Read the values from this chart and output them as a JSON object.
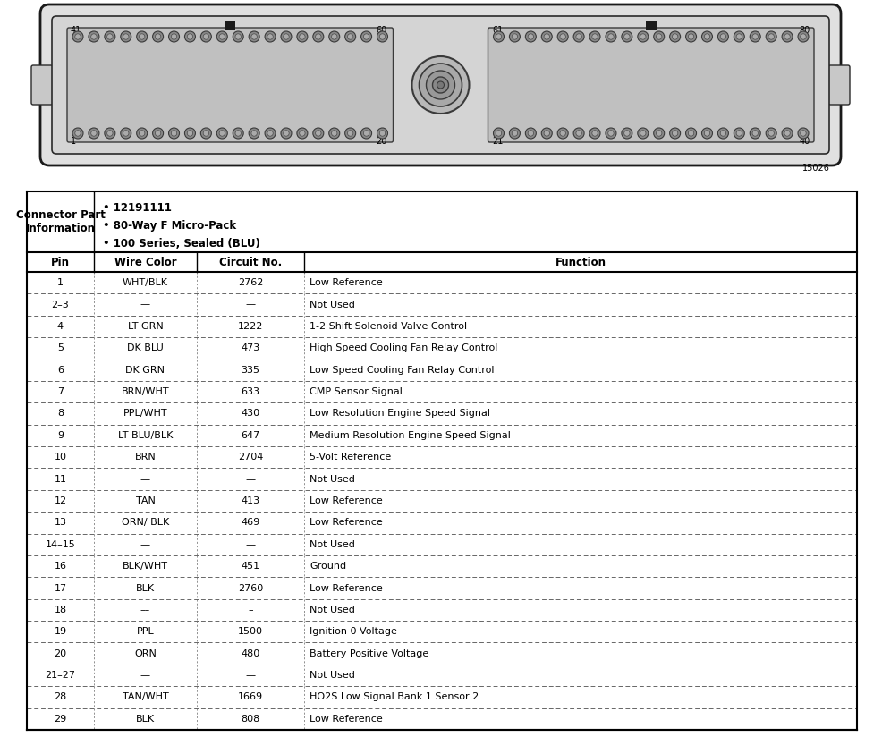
{
  "diagram_label": "15026",
  "connector_info_label": "Connector Part\nInformation",
  "connector_info_bullets": [
    "12191111",
    "80-Way F Micro-Pack",
    "100 Series, Sealed (BLU)"
  ],
  "col_headers": [
    "Pin",
    "Wire Color",
    "Circuit No.",
    "Function"
  ],
  "rows": [
    [
      "1",
      "WHT/BLK",
      "2762",
      "Low Reference"
    ],
    [
      "2–3",
      "—",
      "—",
      "Not Used"
    ],
    [
      "4",
      "LT GRN",
      "1222",
      "1-2 Shift Solenoid Valve Control"
    ],
    [
      "5",
      "DK BLU",
      "473",
      "High Speed Cooling Fan Relay Control"
    ],
    [
      "6",
      "DK GRN",
      "335",
      "Low Speed Cooling Fan Relay Control"
    ],
    [
      "7",
      "BRN/WHT",
      "633",
      "CMP Sensor Signal"
    ],
    [
      "8",
      "PPL/WHT",
      "430",
      "Low Resolution Engine Speed Signal"
    ],
    [
      "9",
      "LT BLU/BLK",
      "647",
      "Medium Resolution Engine Speed Signal"
    ],
    [
      "10",
      "BRN",
      "2704",
      "5-Volt Reference"
    ],
    [
      "11",
      "—",
      "—",
      "Not Used"
    ],
    [
      "12",
      "TAN",
      "413",
      "Low Reference"
    ],
    [
      "13",
      "ORN/ BLK",
      "469",
      "Low Reference"
    ],
    [
      "14–15",
      "—",
      "—",
      "Not Used"
    ],
    [
      "16",
      "BLK/WHT",
      "451",
      "Ground"
    ],
    [
      "17",
      "BLK",
      "2760",
      "Low Reference"
    ],
    [
      "18",
      "––",
      "–",
      "Not Used"
    ],
    [
      "19",
      "PPL",
      "1500",
      "Ignition 0 Voltage"
    ],
    [
      "20",
      "ORN",
      "480",
      "Battery Positive Voltage"
    ],
    [
      "21–27",
      "—",
      "—",
      "Not Used"
    ],
    [
      "28",
      "TAN/WHT",
      "1669",
      "HO2S Low Signal Bank 1 Sensor 2"
    ],
    [
      "29",
      "BLK",
      "808",
      "Low Reference"
    ]
  ],
  "bg_color": "#ffffff",
  "text_color": "#000000"
}
